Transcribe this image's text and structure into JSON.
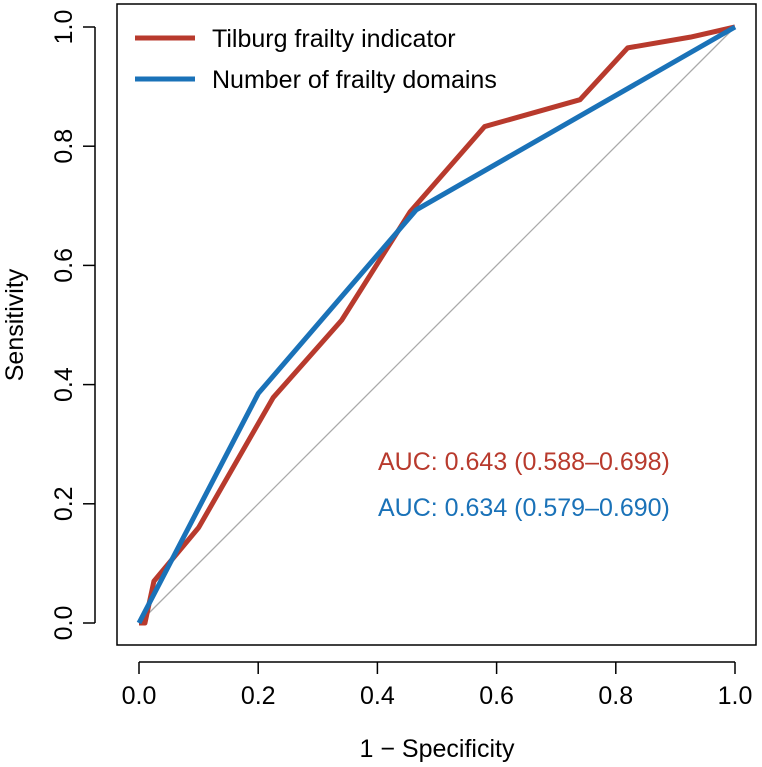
{
  "chart_data": {
    "type": "line",
    "title": "",
    "xlabel": "1 − Specificity",
    "ylabel": "Sensitivity",
    "xlim": [
      0,
      1
    ],
    "ylim": [
      0,
      1
    ],
    "xticks": [
      "0.0",
      "0.2",
      "0.4",
      "0.6",
      "0.8",
      "1.0"
    ],
    "yticks": [
      "0.0",
      "0.2",
      "0.4",
      "0.6",
      "0.8",
      "1.0"
    ],
    "grid": false,
    "legend_position": "top-left",
    "reference_line": {
      "from": [
        0,
        0
      ],
      "to": [
        1,
        1
      ],
      "color": "#aaaaaa"
    },
    "series": [
      {
        "name": "Tilburg frailty indicator",
        "color": "#b83a2d",
        "x": [
          0.0,
          0.01,
          0.025,
          0.1,
          0.225,
          0.34,
          0.455,
          0.58,
          0.74,
          0.82,
          0.925,
          1.0
        ],
        "y": [
          0.0,
          0.0,
          0.07,
          0.16,
          0.378,
          0.508,
          0.69,
          0.833,
          0.878,
          0.965,
          0.983,
          1.0
        ]
      },
      {
        "name": "Number of frailty domains",
        "color": "#1a72b8",
        "x": [
          0.0,
          0.2,
          0.465,
          1.0
        ],
        "y": [
          0.0,
          0.385,
          0.693,
          1.0
        ]
      }
    ],
    "annotations": [
      {
        "text": "AUC: 0.643 (0.588–0.698)",
        "color": "#b83a2d"
      },
      {
        "text": "AUC: 0.634 (0.579–0.690)",
        "color": "#1a72b8"
      }
    ]
  }
}
